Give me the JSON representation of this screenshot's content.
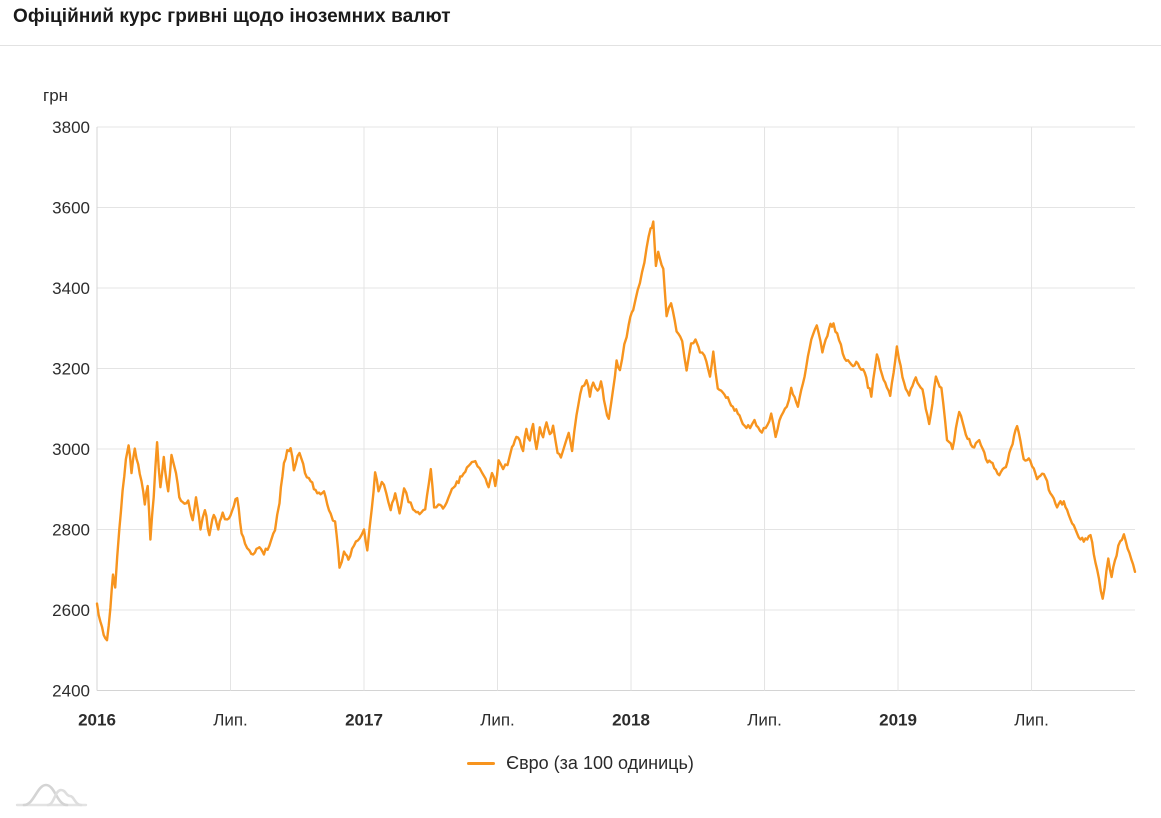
{
  "header": {
    "title": "Офіційний курс гривні щодо іноземних валют"
  },
  "chart": {
    "y_axis_unit_label": "грн",
    "legend": {
      "label": "Євро (за 100 одиниць)",
      "swatch_color": "#f7941e"
    },
    "grid_color": "#e4e4e4",
    "axis_color": "#d4d4d4",
    "page_background": "#ffffff"
  },
  "footer": {
    "logo_icon": "area-curves-logo-icon"
  },
  "chart_data": {
    "type": "line",
    "title": "Офіційний курс гривні щодо іноземних валют",
    "ylabel": "грн",
    "series_name": "Євро (за 100 одиниць)",
    "line_color": "#f7941e",
    "grid": true,
    "legend_position": "bottom-center",
    "ylim": [
      2400,
      3800
    ],
    "y_ticks": [
      2400,
      2600,
      2800,
      3000,
      3200,
      3400,
      3600,
      3800
    ],
    "x_unit": "months_since_2016_01",
    "xlim": [
      0,
      46.65
    ],
    "x_ticks": [
      {
        "t": 0,
        "label": "2016",
        "bold": true
      },
      {
        "t": 6,
        "label": "Лип.",
        "bold": false
      },
      {
        "t": 12,
        "label": "2017",
        "bold": true
      },
      {
        "t": 18,
        "label": "Лип.",
        "bold": false
      },
      {
        "t": 24,
        "label": "2018",
        "bold": true
      },
      {
        "t": 30,
        "label": "Лип.",
        "bold": false
      },
      {
        "t": 36,
        "label": "2019",
        "bold": true
      },
      {
        "t": 42,
        "label": "Лип.",
        "bold": false
      }
    ],
    "points": [
      [
        0.0,
        2616
      ],
      [
        0.15,
        2572
      ],
      [
        0.3,
        2538
      ],
      [
        0.45,
        2525
      ],
      [
        0.6,
        2605
      ],
      [
        0.72,
        2688
      ],
      [
        0.82,
        2656
      ],
      [
        1.0,
        2800
      ],
      [
        1.15,
        2897
      ],
      [
        1.3,
        2975
      ],
      [
        1.42,
        3009
      ],
      [
        1.55,
        2940
      ],
      [
        1.7,
        3001
      ],
      [
        1.85,
        2962
      ],
      [
        2.0,
        2920
      ],
      [
        2.15,
        2862
      ],
      [
        2.28,
        2908
      ],
      [
        2.4,
        2775
      ],
      [
        2.55,
        2880
      ],
      [
        2.7,
        3017
      ],
      [
        2.85,
        2905
      ],
      [
        3.0,
        2980
      ],
      [
        3.2,
        2895
      ],
      [
        3.35,
        2985
      ],
      [
        3.55,
        2940
      ],
      [
        3.7,
        2880
      ],
      [
        3.85,
        2868
      ],
      [
        4.1,
        2872
      ],
      [
        4.3,
        2823
      ],
      [
        4.45,
        2880
      ],
      [
        4.65,
        2800
      ],
      [
        4.85,
        2848
      ],
      [
        5.05,
        2786
      ],
      [
        5.25,
        2836
      ],
      [
        5.45,
        2800
      ],
      [
        5.65,
        2842
      ],
      [
        5.85,
        2825
      ],
      [
        6.0,
        2835
      ],
      [
        6.15,
        2858
      ],
      [
        6.3,
        2878
      ],
      [
        6.5,
        2790
      ],
      [
        6.65,
        2765
      ],
      [
        6.85,
        2748
      ],
      [
        7.1,
        2743
      ],
      [
        7.3,
        2756
      ],
      [
        7.5,
        2738
      ],
      [
        7.75,
        2760
      ],
      [
        8.0,
        2798
      ],
      [
        8.2,
        2865
      ],
      [
        8.4,
        2965
      ],
      [
        8.55,
        2997
      ],
      [
        8.7,
        3002
      ],
      [
        8.85,
        2947
      ],
      [
        9.1,
        2990
      ],
      [
        9.35,
        2940
      ],
      [
        9.6,
        2920
      ],
      [
        9.9,
        2890
      ],
      [
        10.2,
        2895
      ],
      [
        10.5,
        2840
      ],
      [
        10.7,
        2820
      ],
      [
        10.9,
        2705
      ],
      [
        11.1,
        2745
      ],
      [
        11.3,
        2725
      ],
      [
        11.55,
        2760
      ],
      [
        11.8,
        2778
      ],
      [
        12.0,
        2800
      ],
      [
        12.15,
        2748
      ],
      [
        12.35,
        2852
      ],
      [
        12.5,
        2942
      ],
      [
        12.65,
        2895
      ],
      [
        12.8,
        2918
      ],
      [
        13.0,
        2890
      ],
      [
        13.2,
        2848
      ],
      [
        13.4,
        2890
      ],
      [
        13.6,
        2840
      ],
      [
        13.8,
        2902
      ],
      [
        14.0,
        2868
      ],
      [
        14.2,
        2850
      ],
      [
        14.5,
        2838
      ],
      [
        14.75,
        2850
      ],
      [
        15.0,
        2950
      ],
      [
        15.15,
        2855
      ],
      [
        15.35,
        2862
      ],
      [
        15.55,
        2852
      ],
      [
        15.8,
        2880
      ],
      [
        16.1,
        2908
      ],
      [
        16.4,
        2932
      ],
      [
        16.7,
        2958
      ],
      [
        17.0,
        2970
      ],
      [
        17.2,
        2952
      ],
      [
        17.4,
        2932
      ],
      [
        17.6,
        2905
      ],
      [
        17.75,
        2940
      ],
      [
        17.9,
        2908
      ],
      [
        18.05,
        2972
      ],
      [
        18.25,
        2950
      ],
      [
        18.45,
        2960
      ],
      [
        18.65,
        3005
      ],
      [
        18.85,
        3030
      ],
      [
        19.0,
        3021
      ],
      [
        19.15,
        2995
      ],
      [
        19.3,
        3050
      ],
      [
        19.45,
        3021
      ],
      [
        19.6,
        3062
      ],
      [
        19.75,
        3000
      ],
      [
        19.9,
        3054
      ],
      [
        20.05,
        3029
      ],
      [
        20.2,
        3066
      ],
      [
        20.35,
        3037
      ],
      [
        20.5,
        3058
      ],
      [
        20.7,
        2990
      ],
      [
        20.85,
        2979
      ],
      [
        21.05,
        3015
      ],
      [
        21.2,
        3040
      ],
      [
        21.35,
        2995
      ],
      [
        21.55,
        3084
      ],
      [
        21.8,
        3155
      ],
      [
        22.0,
        3171
      ],
      [
        22.15,
        3130
      ],
      [
        22.3,
        3165
      ],
      [
        22.5,
        3145
      ],
      [
        22.65,
        3168
      ],
      [
        22.85,
        3105
      ],
      [
        23.0,
        3075
      ],
      [
        23.2,
        3150
      ],
      [
        23.35,
        3220
      ],
      [
        23.5,
        3196
      ],
      [
        23.7,
        3260
      ],
      [
        23.9,
        3310
      ],
      [
        24.1,
        3345
      ],
      [
        24.3,
        3395
      ],
      [
        24.5,
        3440
      ],
      [
        24.7,
        3500
      ],
      [
        24.88,
        3548
      ],
      [
        25.0,
        3565
      ],
      [
        25.12,
        3455
      ],
      [
        25.22,
        3490
      ],
      [
        25.45,
        3448
      ],
      [
        25.6,
        3330
      ],
      [
        25.8,
        3362
      ],
      [
        26.05,
        3292
      ],
      [
        26.3,
        3268
      ],
      [
        26.5,
        3195
      ],
      [
        26.7,
        3262
      ],
      [
        26.9,
        3272
      ],
      [
        27.1,
        3240
      ],
      [
        27.3,
        3232
      ],
      [
        27.55,
        3180
      ],
      [
        27.7,
        3242
      ],
      [
        27.9,
        3150
      ],
      [
        28.2,
        3135
      ],
      [
        28.5,
        3108
      ],
      [
        28.8,
        3088
      ],
      [
        29.1,
        3058
      ],
      [
        29.35,
        3052
      ],
      [
        29.55,
        3072
      ],
      [
        29.8,
        3045
      ],
      [
        30.05,
        3052
      ],
      [
        30.3,
        3088
      ],
      [
        30.5,
        3030
      ],
      [
        30.75,
        3082
      ],
      [
        31.0,
        3105
      ],
      [
        31.2,
        3152
      ],
      [
        31.5,
        3105
      ],
      [
        31.8,
        3180
      ],
      [
        32.1,
        3272
      ],
      [
        32.35,
        3307
      ],
      [
        32.6,
        3240
      ],
      [
        32.9,
        3300
      ],
      [
        33.1,
        3312
      ],
      [
        33.35,
        3270
      ],
      [
        33.6,
        3225
      ],
      [
        33.9,
        3210
      ],
      [
        34.2,
        3212
      ],
      [
        34.5,
        3190
      ],
      [
        34.8,
        3130
      ],
      [
        35.05,
        3235
      ],
      [
        35.35,
        3172
      ],
      [
        35.65,
        3132
      ],
      [
        35.95,
        3255
      ],
      [
        36.2,
        3178
      ],
      [
        36.5,
        3133
      ],
      [
        36.8,
        3178
      ],
      [
        37.1,
        3148
      ],
      [
        37.4,
        3062
      ],
      [
        37.7,
        3180
      ],
      [
        37.95,
        3152
      ],
      [
        38.2,
        3022
      ],
      [
        38.45,
        3000
      ],
      [
        38.75,
        3092
      ],
      [
        39.05,
        3035
      ],
      [
        39.35,
        3005
      ],
      [
        39.65,
        3022
      ],
      [
        39.95,
        2975
      ],
      [
        40.25,
        2965
      ],
      [
        40.55,
        2935
      ],
      [
        40.85,
        2955
      ],
      [
        41.15,
        3012
      ],
      [
        41.35,
        3057
      ],
      [
        41.65,
        2975
      ],
      [
        41.95,
        2970
      ],
      [
        42.25,
        2925
      ],
      [
        42.55,
        2938
      ],
      [
        42.85,
        2890
      ],
      [
        43.15,
        2855
      ],
      [
        43.45,
        2870
      ],
      [
        43.75,
        2825
      ],
      [
        44.05,
        2790
      ],
      [
        44.35,
        2770
      ],
      [
        44.65,
        2786
      ],
      [
        44.95,
        2700
      ],
      [
        45.2,
        2628
      ],
      [
        45.45,
        2728
      ],
      [
        45.6,
        2682
      ],
      [
        45.9,
        2760
      ],
      [
        46.15,
        2788
      ],
      [
        46.4,
        2742
      ],
      [
        46.65,
        2695
      ]
    ]
  }
}
